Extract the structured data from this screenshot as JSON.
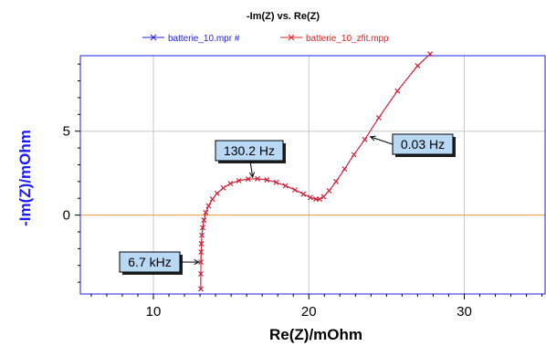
{
  "chart_data": {
    "type": "line",
    "title": "-Im(Z) vs. Re(Z)",
    "xlabel": "Re(Z)/mOhm",
    "ylabel": "-Im(Z)/mOhm",
    "xlim": [
      5.3,
      35.2
    ],
    "ylim": [
      -4.7,
      9.5
    ],
    "xticks": [
      10,
      20,
      30
    ],
    "yticks": [
      0,
      5
    ],
    "grid": true,
    "zero_line_color": "#f0a040",
    "legend_position": "top-center",
    "series": [
      {
        "name": "batterie_10.mpr #",
        "color": "#2020e0",
        "marker": "x",
        "x": [
          13.05,
          13.05,
          13.06,
          13.07,
          13.09,
          13.12,
          13.17,
          13.25,
          13.37,
          13.55,
          13.8,
          14.1,
          14.5,
          14.95,
          15.5,
          16.1,
          16.7,
          17.3,
          17.9,
          18.5,
          19.1,
          19.65,
          20.1,
          20.45,
          20.7,
          20.95,
          21.3,
          21.75,
          22.3,
          22.9,
          23.6,
          24.5,
          25.7,
          27.0,
          27.8
        ],
        "y": [
          -4.4,
          -3.5,
          -2.8,
          -2.2,
          -1.7,
          -1.2,
          -0.75,
          -0.3,
          0.15,
          0.55,
          0.95,
          1.3,
          1.62,
          1.88,
          2.05,
          2.15,
          2.17,
          2.1,
          1.95,
          1.75,
          1.5,
          1.25,
          1.05,
          0.95,
          0.95,
          1.1,
          1.45,
          2.0,
          2.75,
          3.6,
          4.5,
          5.8,
          7.4,
          8.9,
          9.6
        ]
      },
      {
        "name": "batterie_10_zfit.mpp",
        "color": "#e02020",
        "marker": "x",
        "x": [
          13.05,
          13.05,
          13.06,
          13.07,
          13.09,
          13.12,
          13.17,
          13.25,
          13.37,
          13.55,
          13.8,
          14.1,
          14.5,
          14.95,
          15.5,
          16.1,
          16.7,
          17.3,
          17.9,
          18.5,
          19.1,
          19.65,
          20.1,
          20.45,
          20.7,
          20.95,
          21.3,
          21.75,
          22.3,
          22.9,
          23.6,
          24.5,
          25.7,
          27.0,
          27.8
        ],
        "y": [
          -4.4,
          -3.5,
          -2.8,
          -2.2,
          -1.7,
          -1.2,
          -0.75,
          -0.3,
          0.15,
          0.55,
          0.95,
          1.3,
          1.62,
          1.88,
          2.05,
          2.15,
          2.17,
          2.1,
          1.95,
          1.75,
          1.5,
          1.25,
          1.05,
          0.95,
          0.95,
          1.1,
          1.45,
          2.0,
          2.75,
          3.6,
          4.5,
          5.8,
          7.4,
          8.9,
          9.6
        ]
      }
    ],
    "annotations": [
      {
        "text": "130.2 Hz",
        "x": 16.4,
        "y": 2.15
      },
      {
        "text": "0.03 Hz",
        "x": 23.85,
        "y": 4.7
      },
      {
        "text": "6.7 kHz",
        "x": 13.05,
        "y": -2.8
      }
    ]
  }
}
